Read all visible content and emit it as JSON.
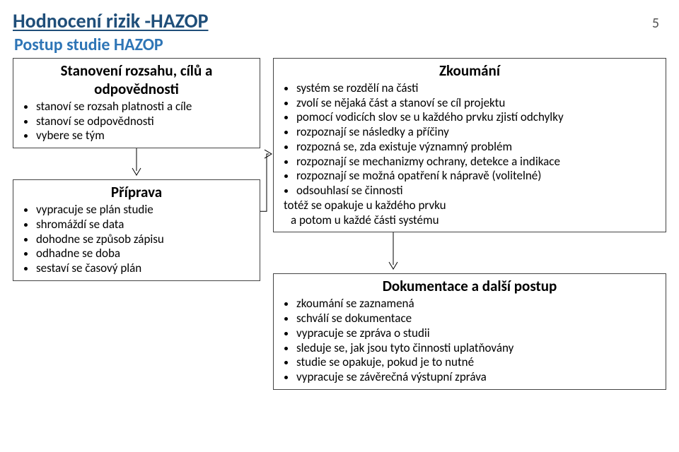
{
  "meta": {
    "title": "Hodnocení rizik -HAZOP",
    "subtitle": "Postup studie HAZOP",
    "page_number": "5"
  },
  "box1": {
    "title": "Stanovení rozsahu, cílů a odpovědnosti",
    "items": [
      "stanoví se rozsah platnosti a cíle",
      "stanoví se odpovědnosti",
      "vybere se tým"
    ]
  },
  "box2": {
    "title": "Příprava",
    "items": [
      "vypracuje se plán studie",
      "shromáždí se data",
      "dohodne se způsob zápisu",
      "odhadne se doba",
      "sestaví se časový plán"
    ]
  },
  "box3": {
    "title": "Zkoumání",
    "items": [
      "systém se rozdělí na části",
      "zvolí se nějaká část a stanoví se cíl projektu",
      "pomocí vodicích slov se u každého prvku zjistí odchylky",
      "rozpoznají se následky a příčiny",
      "rozpozná se, zda existuje významný problém",
      "rozpoznají se mechanizmy ochrany, detekce a indikace",
      "rozpoznají se možná opatření k nápravě (volitelné)",
      "odsouhlasí se činnosti"
    ],
    "tail1": "totéž se opakuje u každého prvku",
    "tail2": "a potom u každé části systému"
  },
  "box4": {
    "title": "Dokumentace a další postup",
    "items": [
      "zkoumání se zaznamená",
      "schválí se dokumentace",
      "vypracuje se zpráva o studii",
      "sleduje se, jak jsou tyto činnosti uplatňovány",
      "studie se opakuje, pokud je to nutné",
      "vypracuje se závěrečná výstupní zpráva"
    ]
  },
  "style": {
    "title_color": "#1f4e79",
    "subtitle_color": "#2e75b6",
    "box_border": "#444",
    "arrow_color": "#000000",
    "font_family": "Calibri, Arial, sans-serif",
    "bg": "#ffffff"
  }
}
